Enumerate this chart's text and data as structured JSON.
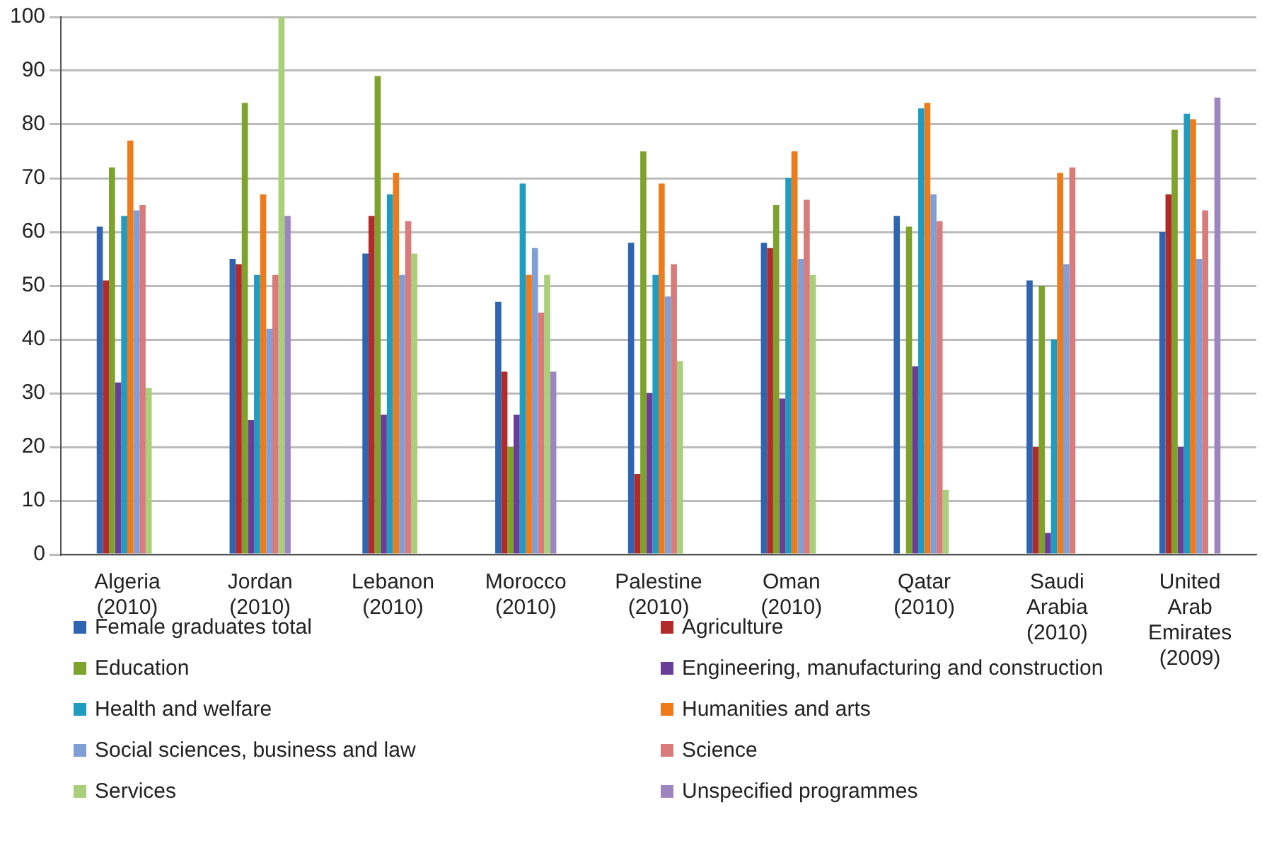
{
  "chart_data": {
    "type": "bar",
    "categories": [
      "Algeria (2010)",
      "Jordan (2010)",
      "Lebanon (2010)",
      "Morocco (2010)",
      "Palestine (2010)",
      "Oman (2010)",
      "Qatar (2010)",
      "Saudi Arabia (2010)",
      "United Arab Emirates (2009)"
    ],
    "series": [
      {
        "name": "Female graduates total",
        "color": "#2e64b0",
        "values": [
          61,
          55,
          56,
          47,
          58,
          58,
          63,
          51,
          60
        ]
      },
      {
        "name": "Agriculture",
        "color": "#b22a2a",
        "values": [
          51,
          54,
          63,
          34,
          15,
          57,
          null,
          20,
          67
        ]
      },
      {
        "name": "Education",
        "color": "#7ea32c",
        "values": [
          72,
          84,
          89,
          20,
          75,
          65,
          61,
          50,
          79
        ]
      },
      {
        "name": "Engineering, manufacturing and construction",
        "color": "#6a3d98",
        "values": [
          32,
          25,
          26,
          26,
          30,
          29,
          35,
          4,
          20
        ]
      },
      {
        "name": "Health and welfare",
        "color": "#1f9cc0",
        "values": [
          63,
          52,
          67,
          69,
          52,
          70,
          83,
          40,
          82
        ]
      },
      {
        "name": "Humanities and arts",
        "color": "#ef7a1a",
        "values": [
          77,
          67,
          71,
          52,
          69,
          75,
          84,
          71,
          81
        ]
      },
      {
        "name": "Social sciences, business and law",
        "color": "#7f9fd6",
        "values": [
          64,
          42,
          52,
          57,
          48,
          55,
          67,
          54,
          55
        ]
      },
      {
        "name": "Science",
        "color": "#d97b7b",
        "values": [
          65,
          52,
          62,
          45,
          54,
          66,
          62,
          72,
          64
        ]
      },
      {
        "name": "Services",
        "color": "#a9cf7a",
        "values": [
          31,
          100,
          56,
          52,
          36,
          52,
          12,
          null,
          null
        ]
      },
      {
        "name": "Unspecified programmes",
        "color": "#9d86c0",
        "values": [
          null,
          63,
          null,
          34,
          null,
          null,
          null,
          null,
          85
        ]
      }
    ],
    "ylim": [
      0,
      100
    ],
    "yticks": [
      0,
      10,
      20,
      30,
      40,
      50,
      60,
      70,
      80,
      90,
      100
    ],
    "grid": "y",
    "legend": "bottom"
  }
}
